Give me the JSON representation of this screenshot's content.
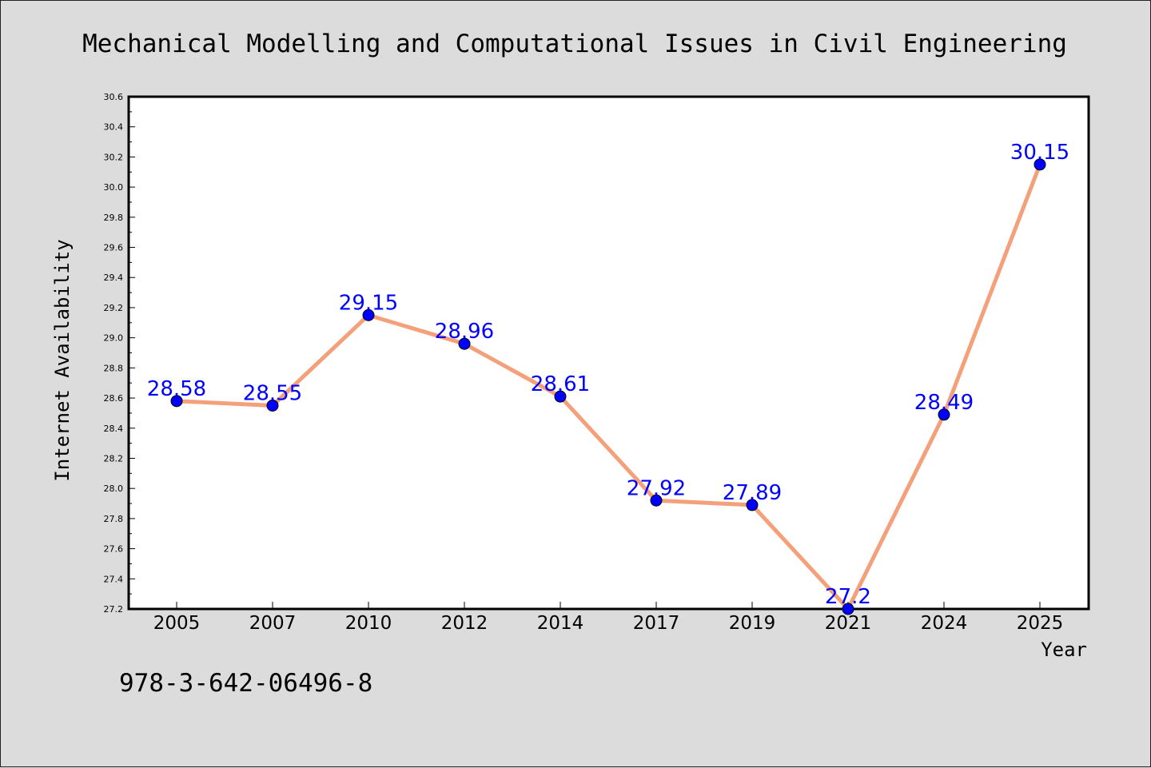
{
  "chart_data": {
    "type": "line",
    "title": "Mechanical Modelling and Computational Issues in Civil Engineering",
    "xlabel": "Year",
    "ylabel": "Internet Availability",
    "categories": [
      "2005",
      "2007",
      "2010",
      "2012",
      "2014",
      "2017",
      "2019",
      "2021",
      "2024",
      "2025"
    ],
    "series": [
      {
        "values": [
          28.58,
          28.55,
          29.15,
          28.96,
          28.61,
          27.92,
          27.89,
          27.2,
          28.49,
          30.15
        ],
        "labels": [
          "28.58",
          "28.55",
          "29.15",
          "28.96",
          "28.61",
          "27.92",
          "27.89",
          "27.2",
          "28.49",
          "30.15"
        ],
        "line_color": "#f4a07a",
        "marker_color": "#0000ff"
      }
    ],
    "ylim": [
      27.2,
      30.6
    ],
    "yticks": [
      "27.2",
      "27.4",
      "27.6",
      "27.8",
      "28.0",
      "28.2",
      "28.4",
      "28.6",
      "28.8",
      "29.0",
      "29.2",
      "29.4",
      "29.6",
      "29.8",
      "30.0",
      "30.2",
      "30.4",
      "30.6"
    ],
    "grid": false,
    "legend": "none"
  },
  "footer": {
    "isbn": "978-3-642-06496-8"
  }
}
